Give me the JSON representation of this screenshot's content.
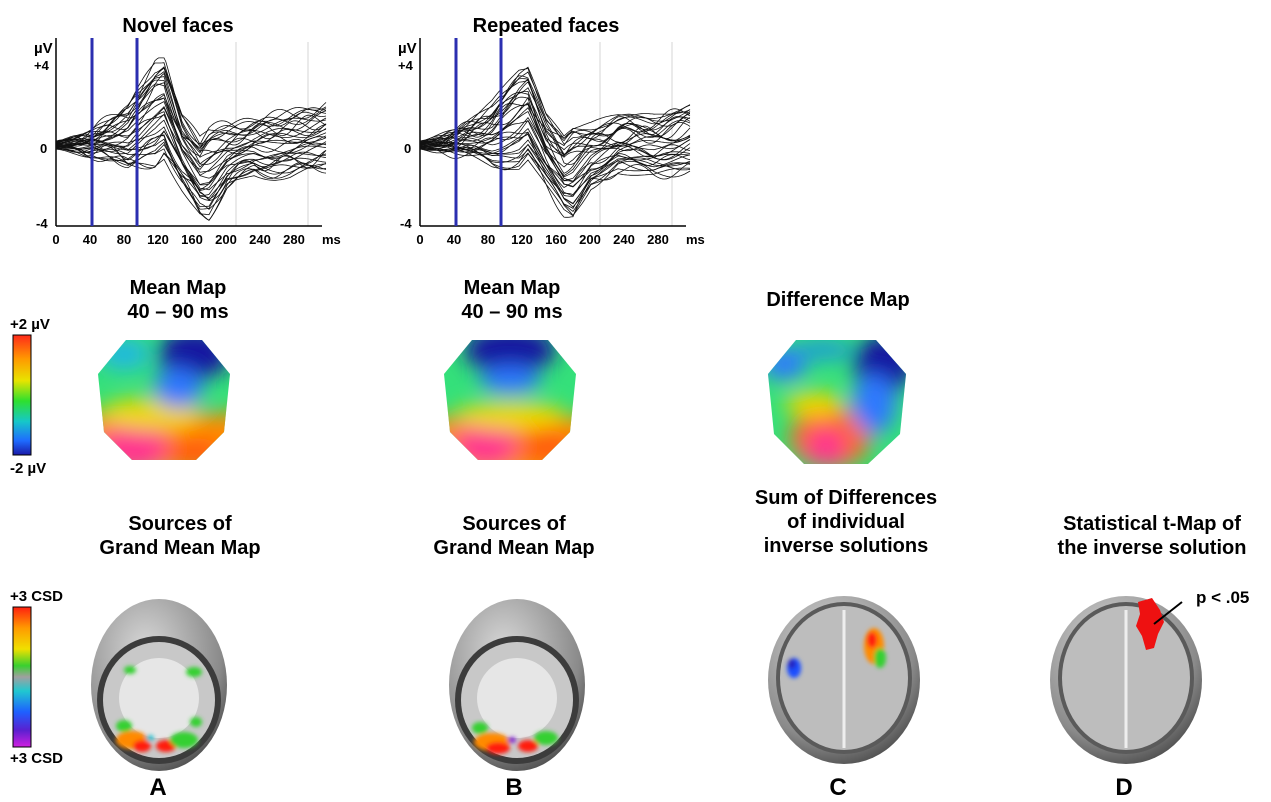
{
  "erp_panels": [
    {
      "title": "Novel faces",
      "y_unit": "µV",
      "y_ticks": [
        "+4",
        "0",
        "-4"
      ],
      "x_ticks": [
        "0",
        "40",
        "80",
        "120",
        "160",
        "200",
        "240",
        "280"
      ],
      "x_unit": "ms"
    },
    {
      "title": "Repeated faces",
      "y_unit": "µV",
      "y_ticks": [
        "+4",
        "0",
        "-4"
      ],
      "x_ticks": [
        "0",
        "40",
        "80",
        "120",
        "160",
        "200",
        "240",
        "280"
      ],
      "x_unit": "ms"
    }
  ],
  "maps": {
    "map1_title": [
      "Mean Map",
      "40 – 90 ms"
    ],
    "map2_title": [
      "Mean Map",
      "40 – 90 ms"
    ],
    "map3_title": "Difference Map",
    "scale_top": "+2 µV",
    "scale_bottom": "-2 µV"
  },
  "sources": {
    "a_title": [
      "Sources of",
      "Grand Mean Map"
    ],
    "b_title": [
      "Sources of",
      "Grand Mean Map"
    ],
    "c_title": [
      "Sum of Differences",
      "of individual",
      "inverse solutions"
    ],
    "d_title": [
      "Statistical t-Map of",
      "the inverse solution"
    ],
    "scale_top": "+3 CSD",
    "scale_bottom": "+3 CSD",
    "annotation": "p < .05",
    "letters": [
      "A",
      "B",
      "C",
      "D"
    ]
  },
  "colors": {
    "marker_line": "#2b2fb0",
    "trace": "#111111",
    "significant": "#ee1111"
  },
  "chart_data": [
    {
      "type": "line",
      "title": "Novel faces",
      "xlabel": "ms",
      "ylabel": "µV",
      "xlim": [
        0,
        300
      ],
      "ylim": [
        -4,
        4
      ],
      "markers_ms": [
        40,
        90
      ],
      "grid": "vertical gridlines at 200 and 280",
      "series_note": "many overlaid channel traces (butterfly plot)",
      "envelope": {
        "x": [
          0,
          40,
          80,
          110,
          120,
          140,
          160,
          170,
          190,
          220,
          260,
          300
        ],
        "upper": [
          0.2,
          0.6,
          2.0,
          4.0,
          4.2,
          1.5,
          0.3,
          0.8,
          1.0,
          1.2,
          1.6,
          2.0
        ],
        "lower": [
          -0.2,
          -0.4,
          -1.2,
          -1.0,
          -0.5,
          -2.0,
          -3.4,
          -3.6,
          -2.2,
          -1.4,
          -1.5,
          -1.2
        ]
      }
    },
    {
      "type": "line",
      "title": "Repeated faces",
      "xlabel": "ms",
      "ylabel": "µV",
      "xlim": [
        0,
        300
      ],
      "ylim": [
        -4,
        4
      ],
      "markers_ms": [
        40,
        90
      ],
      "grid": "vertical gridlines at 200 and 280",
      "series_note": "many overlaid channel traces (butterfly plot)",
      "envelope": {
        "x": [
          0,
          40,
          80,
          110,
          120,
          140,
          160,
          170,
          190,
          220,
          260,
          300
        ],
        "upper": [
          0.2,
          0.6,
          2.0,
          3.6,
          3.8,
          1.5,
          0.4,
          0.9,
          1.0,
          1.3,
          1.5,
          2.0
        ],
        "lower": [
          -0.2,
          -0.4,
          -1.0,
          -1.0,
          -0.6,
          -2.0,
          -3.4,
          -3.7,
          -2.0,
          -1.2,
          -1.5,
          -1.3
        ]
      }
    }
  ]
}
